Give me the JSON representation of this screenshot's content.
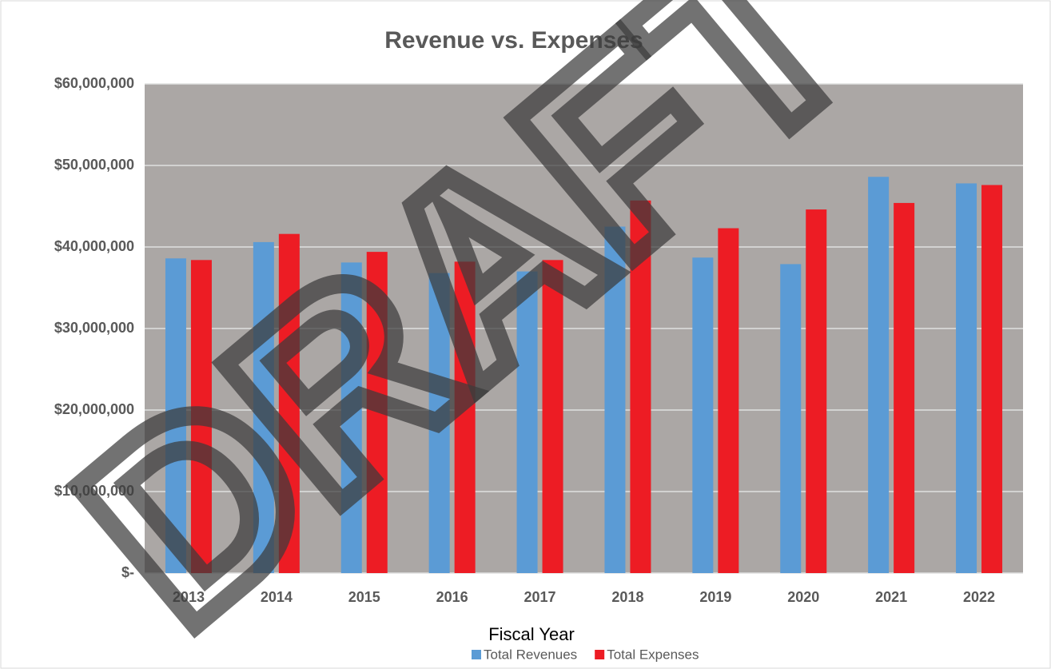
{
  "chart_data": {
    "type": "bar",
    "title": "Revenue vs. Expenses",
    "x_label": "Fiscal Year",
    "watermark": "DRAFT",
    "categories": [
      "2013",
      "2014",
      "2015",
      "2016",
      "2017",
      "2018",
      "2019",
      "2020",
      "2021",
      "2022"
    ],
    "series": [
      {
        "name": "Total Revenues",
        "color": "#5b9bd5",
        "values": [
          38600000,
          40600000,
          38100000,
          36800000,
          37000000,
          42500000,
          38700000,
          37900000,
          48600000,
          47800000
        ]
      },
      {
        "name": "Total Expenses",
        "color": "#ed1c24",
        "values": [
          38400000,
          41600000,
          39400000,
          38200000,
          38400000,
          45700000,
          42300000,
          44600000,
          45400000,
          47600000
        ]
      }
    ],
    "ylim": [
      0,
      60000000
    ],
    "yticks": [
      {
        "value": 0,
        "label": "$-"
      },
      {
        "value": 10000000,
        "label": "$10,000,000"
      },
      {
        "value": 20000000,
        "label": "$20,000,000"
      },
      {
        "value": 30000000,
        "label": "$30,000,000"
      },
      {
        "value": 40000000,
        "label": "$40,000,000"
      },
      {
        "value": 50000000,
        "label": "$50,000,000"
      },
      {
        "value": 60000000,
        "label": "$60,000,000"
      }
    ],
    "grid": true,
    "plot_background": "#aba7a5",
    "legend": "bottom"
  }
}
